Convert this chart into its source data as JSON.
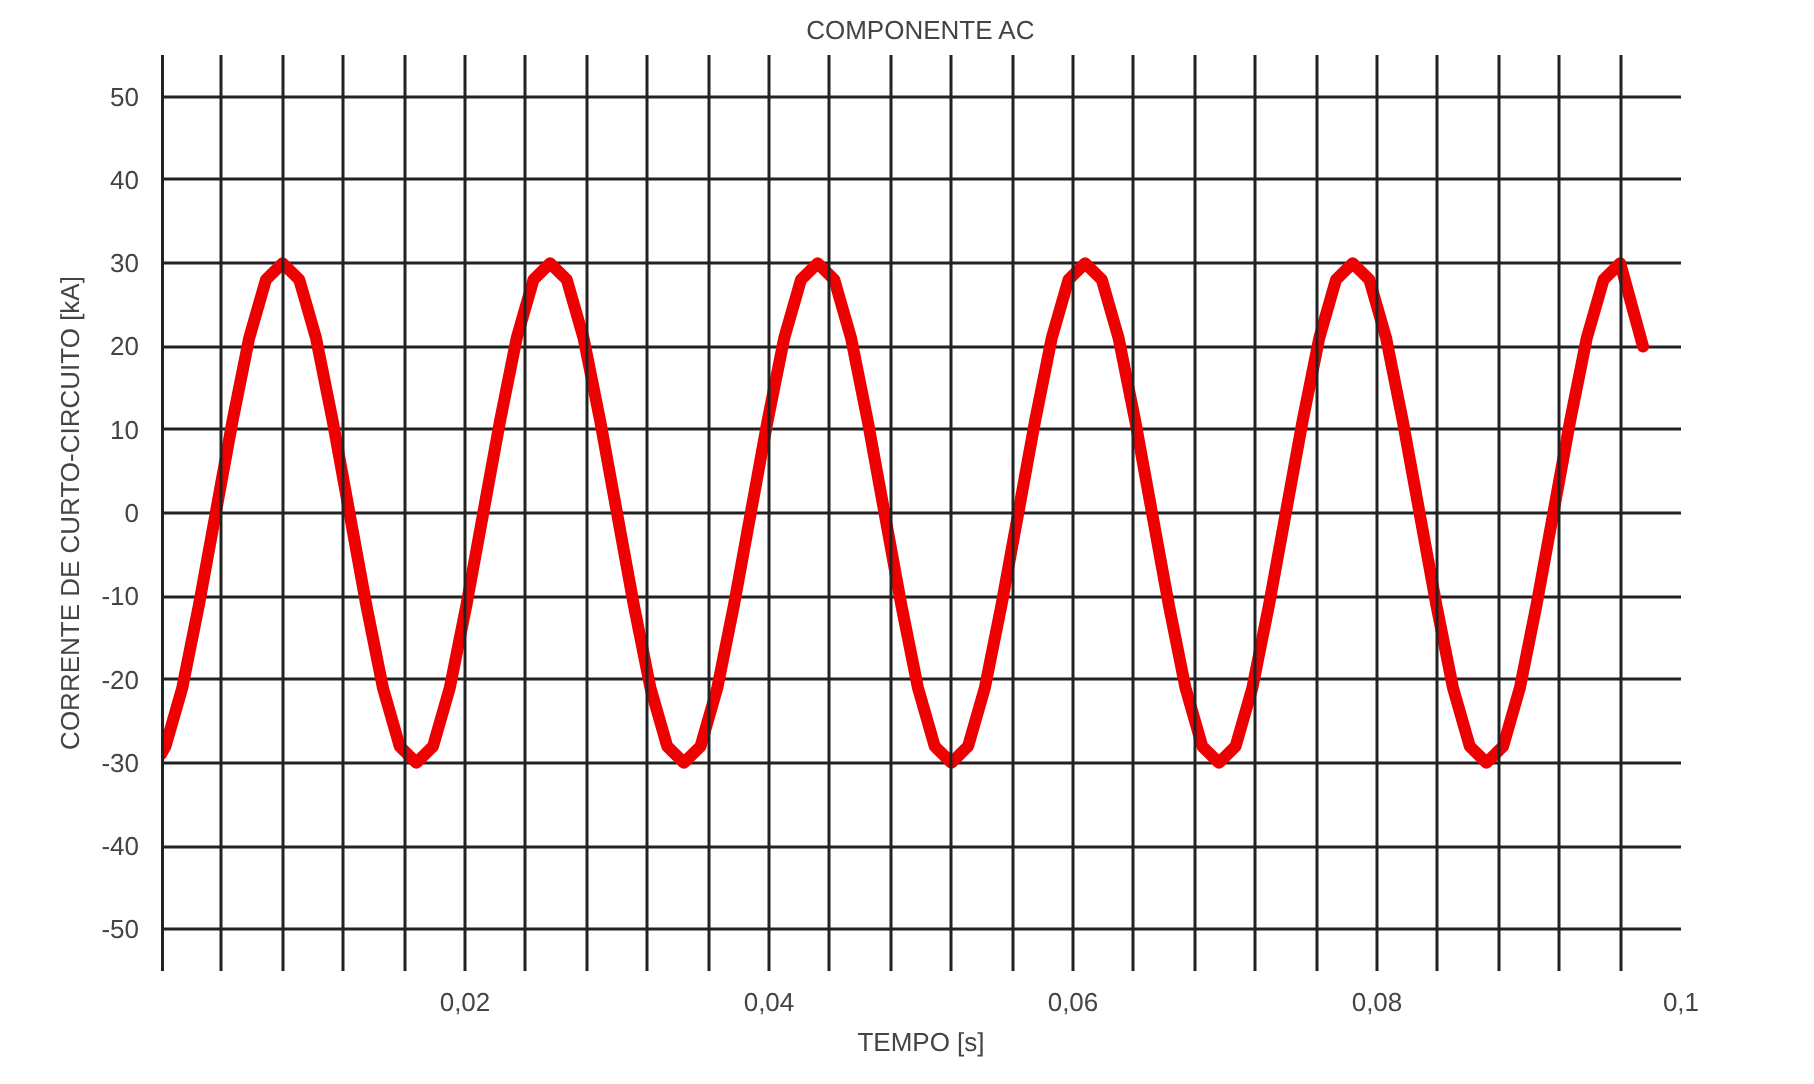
{
  "chart_data": {
    "type": "line",
    "title": "COMPONENTE AC",
    "xlabel": "TEMPO [s]",
    "ylabel": "CORRENTE DE CURTO-CIRCUITO [kA]",
    "x": [
      0,
      0.0003,
      0.0014,
      0.0025,
      0.0036,
      0.0047,
      0.0058,
      0.0069,
      0.008,
      0.0091,
      0.0102,
      0.0113,
      0.0124,
      0.0135,
      0.0146,
      0.0157,
      0.0168,
      0.0179,
      0.019,
      0.0201,
      0.0212,
      0.0223,
      0.0234,
      0.0245,
      0.0256,
      0.0267,
      0.0278,
      0.0289,
      0.03,
      0.0311,
      0.0322,
      0.0333,
      0.0344,
      0.0355,
      0.0366,
      0.0377,
      0.0388,
      0.0399,
      0.041,
      0.0421,
      0.0432,
      0.0443,
      0.0454,
      0.0465,
      0.0476,
      0.0487,
      0.0498,
      0.0509,
      0.052,
      0.0531,
      0.0542,
      0.0553,
      0.0564,
      0.0575,
      0.0586,
      0.0597,
      0.0608,
      0.0619,
      0.063,
      0.0641,
      0.0652,
      0.0663,
      0.0674,
      0.0685,
      0.0696,
      0.0707,
      0.0718,
      0.0729,
      0.074,
      0.0751,
      0.0762,
      0.0773,
      0.0784,
      0.0795,
      0.0806,
      0.0817,
      0.0828,
      0.0839,
      0.085,
      0.0861,
      0.0872,
      0.0883,
      0.0894,
      0.0905,
      0.0916,
      0.0927,
      0.0938,
      0.0949,
      0.096,
      0.0975
    ],
    "series": [
      {
        "color": "#ee0000",
        "values": [
          -29,
          -28,
          -21,
          -11,
          0,
          11,
          21,
          28,
          30,
          28,
          21,
          11,
          0,
          -11,
          -21,
          -28,
          -30,
          -28,
          -21,
          -11,
          0,
          11,
          21,
          28,
          30,
          28,
          21,
          11,
          0,
          -11,
          -21,
          -28,
          -30,
          -28,
          -21,
          -11,
          0,
          11,
          21,
          28,
          30,
          28,
          21,
          11,
          0,
          -11,
          -21,
          -28,
          -30,
          -28,
          -21,
          -11,
          0,
          11,
          21,
          28,
          30,
          28,
          21,
          11,
          0,
          -11,
          -21,
          -28,
          -30,
          -28,
          -21,
          -11,
          0,
          11,
          21,
          28,
          30,
          28,
          21,
          11,
          0,
          -11,
          -21,
          -28,
          -30,
          -28,
          -21,
          -11,
          0,
          11,
          21,
          28,
          30,
          20
        ]
      }
    ],
    "xlim": [
      0,
      0.1
    ],
    "ylim": [
      -55,
      55
    ],
    "xticks": [
      {
        "value": 0,
        "label": null
      },
      {
        "value": 0.004,
        "label": null
      },
      {
        "value": 0.008,
        "label": null
      },
      {
        "value": 0.012,
        "label": null
      },
      {
        "value": 0.016,
        "label": null
      },
      {
        "value": 0.02,
        "label": "0,02"
      },
      {
        "value": 0.024,
        "label": null
      },
      {
        "value": 0.028,
        "label": null
      },
      {
        "value": 0.032,
        "label": null
      },
      {
        "value": 0.036,
        "label": null
      },
      {
        "value": 0.04,
        "label": "0,04"
      },
      {
        "value": 0.044,
        "label": null
      },
      {
        "value": 0.048,
        "label": null
      },
      {
        "value": 0.052,
        "label": null
      },
      {
        "value": 0.056,
        "label": null
      },
      {
        "value": 0.06,
        "label": "0,06"
      },
      {
        "value": 0.064,
        "label": null
      },
      {
        "value": 0.068,
        "label": null
      },
      {
        "value": 0.072,
        "label": null
      },
      {
        "value": 0.076,
        "label": null
      },
      {
        "value": 0.08,
        "label": "0,08"
      },
      {
        "value": 0.084,
        "label": null
      },
      {
        "value": 0.088,
        "label": null
      },
      {
        "value": 0.092,
        "label": null
      },
      {
        "value": 0.096,
        "label": null
      },
      {
        "value": 0.1,
        "label": "0,1"
      }
    ],
    "yticks": [
      -50,
      -40,
      -30,
      -20,
      -10,
      0,
      10,
      20,
      30,
      40,
      50
    ],
    "grid": true,
    "marker": "none",
    "line_style": "solid"
  }
}
